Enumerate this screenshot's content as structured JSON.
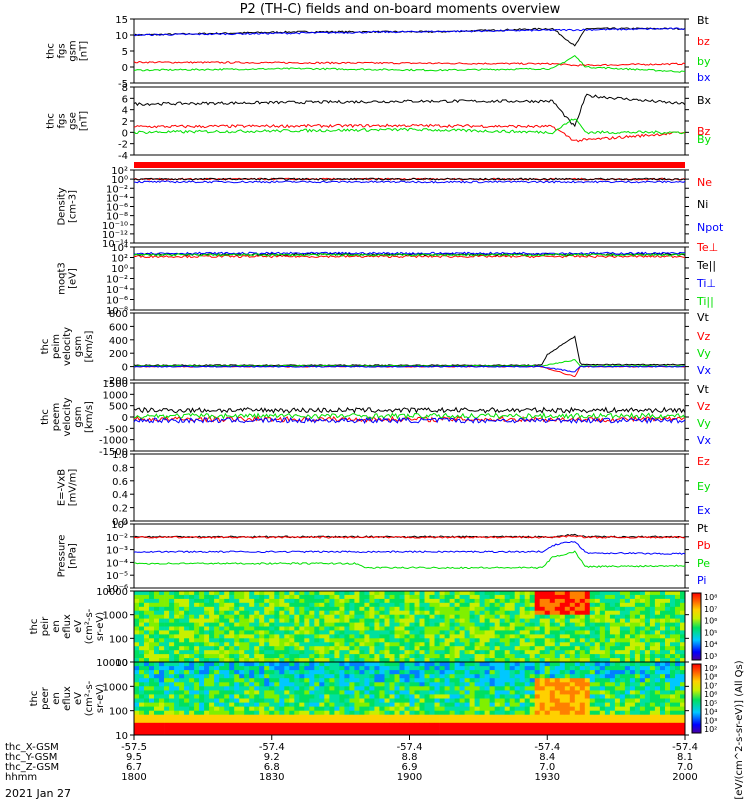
{
  "title": "P2 (TH-C) fields and on-board moments overview",
  "date_label": "2021 Jan 27",
  "colorbar_label": "[eV/(cm^2-s-sr-eV)] (All Qs)",
  "x_axis": {
    "rows": [
      {
        "label": "thc_X-GSM",
        "values": [
          "-57.5",
          "-57.4",
          "-57.4",
          "-57.4",
          "-57.4"
        ]
      },
      {
        "label": "thc_Y-GSM",
        "values": [
          "9.5",
          "9.2",
          "8.8",
          "8.4",
          "8.1"
        ]
      },
      {
        "label": "thc_Z-GSM",
        "values": [
          "6.7",
          "6.8",
          "6.9",
          "7.0",
          "7.0"
        ]
      },
      {
        "label": "hhmm",
        "values": [
          "1800",
          "1830",
          "1900",
          "1930",
          "2000"
        ]
      }
    ]
  },
  "colors": {
    "black": "#000000",
    "red": "#ff0000",
    "green": "#00e000",
    "blue": "#0000ff"
  },
  "chart_data": [
    {
      "type": "line",
      "ylabel": [
        "thc",
        "fgs",
        "gsm",
        "[nT]"
      ],
      "ylim": [
        -5,
        15
      ],
      "ticks": [
        "-5",
        "0",
        "5",
        "10",
        "15"
      ],
      "scale": "linear",
      "series": [
        {
          "name": "Bt",
          "color": "#000000",
          "x": [
            0,
            0.3,
            0.55,
            0.76,
            0.79,
            0.8,
            0.82,
            1
          ],
          "y": [
            10,
            11,
            11,
            12,
            8,
            6.5,
            12,
            12
          ]
        },
        {
          "name": "bz",
          "color": "#ff0000",
          "x": [
            0,
            0.5,
            0.76,
            0.8,
            1
          ],
          "y": [
            1.5,
            1.2,
            1.0,
            0.5,
            1.0
          ]
        },
        {
          "name": "by",
          "color": "#00e000",
          "x": [
            0,
            0.3,
            0.55,
            0.76,
            0.8,
            0.82,
            1
          ],
          "y": [
            -1,
            -0.5,
            -1,
            -0.5,
            3.5,
            0,
            -1.5
          ]
        },
        {
          "name": "bx",
          "color": "#0000ff",
          "x": [
            0,
            1
          ],
          "y": [
            10,
            12
          ]
        }
      ]
    },
    {
      "type": "line",
      "ylabel": [
        "thc",
        "fgs",
        "gse",
        "[nT]"
      ],
      "ylim": [
        -4,
        8
      ],
      "ticks": [
        "-4",
        "-2",
        "0",
        "2",
        "4",
        "6",
        "8"
      ],
      "scale": "linear",
      "series": [
        {
          "name": "Bx",
          "color": "#000000",
          "x": [
            0,
            0.5,
            0.76,
            0.79,
            0.8,
            0.82,
            1
          ],
          "y": [
            5,
            5.5,
            5.5,
            2,
            1,
            6.5,
            5
          ]
        },
        {
          "name": "Bz",
          "color": "#ff0000",
          "x": [
            0,
            0.5,
            0.76,
            0.8,
            1
          ],
          "y": [
            1,
            1.2,
            1,
            -1.5,
            0
          ]
        },
        {
          "name": "By",
          "color": "#00e000",
          "x": [
            0,
            0.5,
            0.76,
            0.8,
            0.82,
            1
          ],
          "y": [
            0,
            0.5,
            0,
            2.5,
            0,
            0
          ]
        }
      ]
    },
    {
      "type": "line",
      "ylabel": [
        "Density",
        "[cm-3]"
      ],
      "ylim_exp": [
        -14,
        2
      ],
      "ticks": [
        "10⁻¹⁴",
        "10⁻¹²",
        "10⁻¹⁰",
        "10⁻⁸",
        "10⁻⁶",
        "10⁻⁴",
        "10⁻²",
        "10⁰",
        "10²"
      ],
      "scale": "log",
      "series": [
        {
          "name": "Ne",
          "color": "#ff0000",
          "x": [
            0,
            1
          ],
          "y_exp": [
            0,
            0
          ]
        },
        {
          "name": "Ni",
          "color": "#000000",
          "x": [
            0,
            1
          ],
          "y_exp": [
            0,
            0
          ]
        },
        {
          "name": "Npot",
          "color": "#0000ff",
          "x": [
            0,
            1
          ],
          "y_exp": [
            -0.6,
            -0.6
          ]
        }
      ]
    },
    {
      "type": "line",
      "ylabel": [
        "moqt3",
        "[eV]"
      ],
      "ylim_exp": [
        -8,
        4
      ],
      "ticks": [
        "10⁻⁸",
        "10⁻⁶",
        "10⁻⁴",
        "10⁻²",
        "10⁰",
        "10²",
        "10⁴"
      ],
      "scale": "log",
      "series": [
        {
          "name": "Te⊥",
          "color": "#ff0000",
          "x": [
            0,
            1
          ],
          "y_exp": [
            2.2,
            2.2
          ]
        },
        {
          "name": "Te||",
          "color": "#000000",
          "x": [
            0,
            1
          ],
          "y_exp": [
            2.6,
            2.6
          ]
        },
        {
          "name": "Ti⊥",
          "color": "#0000ff",
          "x": [
            0,
            1
          ],
          "y_exp": [
            2.8,
            2.8
          ]
        },
        {
          "name": "Ti||",
          "color": "#00e000",
          "x": [
            0,
            1
          ],
          "y_exp": [
            2.5,
            2.5
          ]
        }
      ]
    },
    {
      "type": "line",
      "ylabel": [
        "thc",
        "peim",
        "velocity",
        "gsm",
        "[km/s]"
      ],
      "ylim": [
        -200,
        800
      ],
      "ticks": [
        "-200",
        "0",
        "200",
        "400",
        "600",
        "800"
      ],
      "scale": "linear",
      "series": [
        {
          "name": "Vt",
          "color": "#000000",
          "x": [
            0,
            0.74,
            0.75,
            0.8,
            0.81,
            1
          ],
          "y": [
            20,
            20,
            180,
            450,
            30,
            30
          ]
        },
        {
          "name": "Vz",
          "color": "#ff0000",
          "x": [
            0,
            0.74,
            0.8,
            0.81,
            1
          ],
          "y": [
            0,
            0,
            -150,
            0,
            0
          ]
        },
        {
          "name": "Vy",
          "color": "#00e000",
          "x": [
            0,
            0.74,
            0.8,
            0.81,
            1
          ],
          "y": [
            10,
            10,
            100,
            10,
            10
          ]
        },
        {
          "name": "Vx",
          "color": "#0000ff",
          "x": [
            0,
            0.74,
            0.8,
            0.81,
            1
          ],
          "y": [
            0,
            0,
            -80,
            0,
            0
          ]
        }
      ]
    },
    {
      "type": "line",
      "ylabel": [
        "thc",
        "peem",
        "velocity",
        "gsm",
        "[km/s]"
      ],
      "ylim": [
        -1500,
        1500
      ],
      "ticks": [
        "-1500",
        "-1000",
        "-500",
        "0",
        "500",
        "1000",
        "1500"
      ],
      "scale": "linear",
      "series": [
        {
          "name": "Vt",
          "color": "#000000",
          "x": [
            0,
            1
          ],
          "y": [
            300,
            300
          ]
        },
        {
          "name": "Vz",
          "color": "#ff0000",
          "x": [
            0,
            1
          ],
          "y": [
            -100,
            -100
          ]
        },
        {
          "name": "Vy",
          "color": "#00e000",
          "x": [
            0,
            1
          ],
          "y": [
            50,
            50
          ]
        },
        {
          "name": "Vx",
          "color": "#0000ff",
          "x": [
            0,
            1
          ],
          "y": [
            -150,
            -150
          ]
        }
      ]
    },
    {
      "type": "line",
      "ylabel": [
        "E=-VxB",
        "[mV/m]"
      ],
      "ylim": [
        0,
        1
      ],
      "ticks": [
        "0.0",
        "0.2",
        "0.4",
        "0.6",
        "0.8",
        "1.0"
      ],
      "scale": "linear",
      "series": [
        {
          "name": "Ez",
          "color": "#ff0000",
          "x": [],
          "y": []
        },
        {
          "name": "Ey",
          "color": "#00e000",
          "x": [],
          "y": []
        },
        {
          "name": "Ex",
          "color": "#0000ff",
          "x": [],
          "y": []
        }
      ]
    },
    {
      "type": "line",
      "ylabel": [
        "Pressure",
        "[nPa]"
      ],
      "ylim_exp": [
        -6,
        0
      ],
      "ticks": [
        "10⁻⁶",
        "10⁻⁵",
        "10⁻⁴",
        "10⁻³",
        "10⁻²",
        "10⁰"
      ],
      "scale": "log",
      "series": [
        {
          "name": "Pt",
          "color": "#000000",
          "x": [
            0,
            0.76,
            0.8,
            0.82,
            1
          ],
          "y_exp": [
            -1.2,
            -1.2,
            -1.0,
            -1.2,
            -1.2
          ]
        },
        {
          "name": "Pb",
          "color": "#ff0000",
          "x": [
            0,
            0.76,
            0.8,
            0.82,
            1
          ],
          "y_exp": [
            -1.25,
            -1.25,
            -1.1,
            -1.25,
            -1.25
          ]
        },
        {
          "name": "Pe",
          "color": "#00e000",
          "x": [
            0,
            0.4,
            0.42,
            0.74,
            0.76,
            0.8,
            0.82,
            1
          ],
          "y_exp": [
            -3.7,
            -3.7,
            -4.1,
            -4.1,
            -3.1,
            -2.6,
            -4.0,
            -3.9
          ]
        },
        {
          "name": "Pi",
          "color": "#0000ff",
          "x": [
            0,
            0.74,
            0.76,
            0.8,
            0.82,
            1
          ],
          "y_exp": [
            -2.6,
            -2.6,
            -2.0,
            -1.6,
            -2.7,
            -2.8
          ]
        }
      ]
    },
    {
      "type": "heatmap",
      "ylabel": [
        "thc",
        "peir",
        "en",
        "eflux",
        "eV",
        "(cm²-s-",
        "sr-eV)"
      ],
      "ticks": [
        "10",
        "100",
        "1000",
        "10000"
      ],
      "scale": "log",
      "colorbar_ticks": [
        "10³",
        "10⁴",
        "10⁵",
        "10⁶",
        "10⁷",
        "10⁸"
      ]
    },
    {
      "type": "heatmap",
      "ylabel": [
        "thc",
        "peer",
        "en",
        "eflux",
        "eV",
        "(cm²-s-",
        "sr-eV)"
      ],
      "ticks": [
        "10",
        "100",
        "1000",
        "10000"
      ],
      "scale": "log",
      "colorbar_ticks": [
        "10²",
        "10³",
        "10⁴",
        "10⁵",
        "10⁶",
        "10⁷",
        "10⁸",
        "10⁹"
      ]
    }
  ]
}
